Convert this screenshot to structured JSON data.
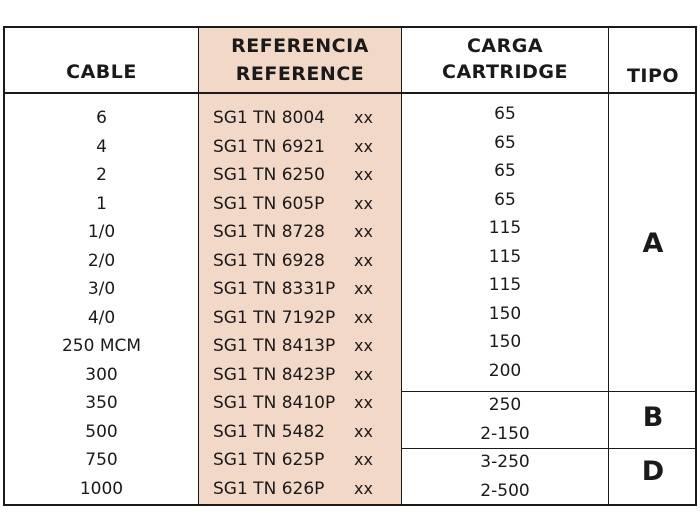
{
  "headers": {
    "cable": "CABLE",
    "referencia": "REFERENCIA",
    "reference": "REFERENCE",
    "carga": "CARGA",
    "cartridge": "CARTRIDGE",
    "tipo": "TIPO"
  },
  "rows": [
    {
      "cable": "6",
      "ref": "SG1 TN 8004",
      "suffix": "xx",
      "carga": "65"
    },
    {
      "cable": "4",
      "ref": "SG1 TN 6921",
      "suffix": "xx",
      "carga": "65"
    },
    {
      "cable": "2",
      "ref": "SG1 TN 6250",
      "suffix": "xx",
      "carga": "65"
    },
    {
      "cable": "1",
      "ref": "SG1 TN 605P",
      "suffix": "xx",
      "carga": "65"
    },
    {
      "cable": "1/0",
      "ref": "SG1 TN 8728",
      "suffix": "xx",
      "carga": "115"
    },
    {
      "cable": "2/0",
      "ref": "SG1 TN 6928",
      "suffix": "xx",
      "carga": "115"
    },
    {
      "cable": "3/0",
      "ref": "SG1 TN 8331P",
      "suffix": "xx",
      "carga": "115"
    },
    {
      "cable": "4/0",
      "ref": "SG1 TN 7192P",
      "suffix": "xx",
      "carga": "150"
    },
    {
      "cable": "250 MCM",
      "ref": "SG1 TN 8413P",
      "suffix": "xx",
      "carga": "150"
    },
    {
      "cable": "300",
      "ref": "SG1 TN 8423P",
      "suffix": "xx",
      "carga": "200"
    },
    {
      "cable": "350",
      "ref": "SG1 TN 8410P",
      "suffix": "xx",
      "carga": "250"
    },
    {
      "cable": "500",
      "ref": "SG1 TN 5482",
      "suffix": "xx",
      "carga": "2-150"
    },
    {
      "cable": "750",
      "ref": "SG1 TN 625P",
      "suffix": "xx",
      "carga": "3-250"
    },
    {
      "cable": "1000",
      "ref": "SG1 TN 626P",
      "suffix": "xx",
      "carga": "2-500"
    }
  ],
  "tipos": [
    {
      "label": "A",
      "rows": [
        0,
        9
      ]
    },
    {
      "label": "B",
      "rows": [
        10,
        11
      ]
    },
    {
      "label": "D",
      "rows": [
        12,
        13
      ]
    }
  ],
  "colors": {
    "reference_column_bg": "#f2d8c7",
    "border": "#1a1a1a"
  }
}
